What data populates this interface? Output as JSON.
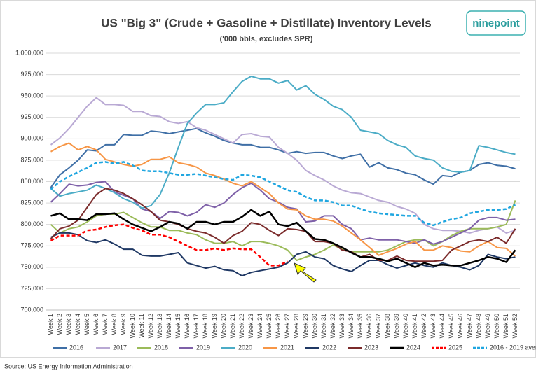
{
  "chart_data": {
    "type": "line",
    "title": "US \"Big 3\"  (Crude + Gasoline + Distillate) Inventory Levels",
    "subtitle": "('000 bbls, excludes SPR)",
    "logo": "ninepoint",
    "source": "Source: US Energy Information Administration",
    "grid": true,
    "legend": "bottom",
    "ylim": [
      700000,
      1000000
    ],
    "yticks": [
      {
        "value": 700000,
        "label": "700,000"
      },
      {
        "value": 725000,
        "label": "725,000"
      },
      {
        "value": 750000,
        "label": "750,000"
      },
      {
        "value": 775000,
        "label": "775,000"
      },
      {
        "value": 800000,
        "label": "800,000"
      },
      {
        "value": 825000,
        "label": "825,000"
      },
      {
        "value": 850000,
        "label": "850,000"
      },
      {
        "value": 875000,
        "label": "875,000"
      },
      {
        "value": 900000,
        "label": "900,000"
      },
      {
        "value": 925000,
        "label": "925,000"
      },
      {
        "value": 950000,
        "label": "950,000"
      },
      {
        "value": 975000,
        "label": "975,000"
      },
      {
        "value": 1000000,
        "label": "1,000,000"
      }
    ],
    "categories": [
      "Week 1",
      "Week 2",
      "Week 3",
      "Week 4",
      "Week 5",
      "Week 6",
      "Week 7",
      "Week 8",
      "Week 9",
      "Week 10",
      "Week 11",
      "Week 12",
      "Week 13",
      "Week 14",
      "Week 15",
      "Week 16",
      "Week 17",
      "Week 18",
      "Week 19",
      "Week 20",
      "Week 21",
      "Week 22",
      "Week 23",
      "Week 24",
      "Week 25",
      "Week 26",
      "Week 27",
      "Week 28",
      "Week 29",
      "Week 30",
      "Week 31",
      "Week 32",
      "Week 33",
      "Week 34",
      "Week 35",
      "Week 36",
      "Week 37",
      "Week 38",
      "Week 39",
      "Week 40",
      "Week 41",
      "Week 42",
      "Week 43",
      "Week 44",
      "Week 45",
      "Week 46",
      "Week 47",
      "Week 48",
      "Week 49",
      "Week 50",
      "Week 51",
      "Week 52"
    ],
    "series": [
      {
        "name": "2016",
        "color": "#3f6fa6",
        "width": 2,
        "dash": false,
        "values": [
          843000,
          858000,
          866000,
          875000,
          887000,
          886000,
          893000,
          893000,
          905000,
          904000,
          904000,
          909000,
          908000,
          906000,
          908000,
          910000,
          912000,
          907000,
          903000,
          898000,
          895000,
          893000,
          893000,
          890000,
          890000,
          887000,
          883000,
          885000,
          883000,
          884000,
          884000,
          880000,
          877000,
          880000,
          882000,
          867000,
          872000,
          866000,
          864000,
          860000,
          858000,
          852000,
          847000,
          857000,
          856000,
          861000,
          863000,
          870000,
          872000,
          869000,
          868000,
          865000
        ]
      },
      {
        "name": "2017",
        "color": "#b9a9d4",
        "width": 2,
        "dash": false,
        "values": [
          893000,
          901000,
          912000,
          925000,
          938000,
          948000,
          940000,
          940000,
          939000,
          932000,
          932000,
          927000,
          926000,
          920000,
          918000,
          920000,
          913000,
          910000,
          905000,
          900000,
          895000,
          905000,
          906000,
          903000,
          902000,
          890000,
          883000,
          875000,
          863000,
          857000,
          852000,
          845000,
          840000,
          837000,
          836000,
          832000,
          828000,
          826000,
          821000,
          818000,
          813000,
          800000,
          795000,
          793000,
          793000,
          792000,
          790000,
          793000,
          795000,
          797000,
          790000,
          793000
        ]
      },
      {
        "name": "2018",
        "color": "#9bbb59",
        "width": 2,
        "dash": false,
        "values": [
          800000,
          790000,
          795000,
          797000,
          803000,
          810000,
          812000,
          812000,
          814000,
          808000,
          802000,
          797000,
          797000,
          793000,
          793000,
          790000,
          788000,
          782000,
          778000,
          778000,
          780000,
          775000,
          780000,
          780000,
          778000,
          775000,
          770000,
          758000,
          762000,
          765000,
          770000,
          776000,
          771000,
          768000,
          768000,
          768000,
          768000,
          770000,
          775000,
          780000,
          782000,
          782000,
          775000,
          780000,
          787000,
          792000,
          795000,
          795000,
          795000,
          797000,
          800000,
          828000
        ]
      },
      {
        "name": "2019",
        "color": "#7e60a8",
        "width": 2,
        "dash": false,
        "values": [
          826000,
          836000,
          847000,
          845000,
          846000,
          849000,
          850000,
          838000,
          834000,
          830000,
          818000,
          815000,
          807000,
          815000,
          814000,
          810000,
          814000,
          823000,
          820000,
          825000,
          835000,
          843000,
          848000,
          840000,
          830000,
          826000,
          820000,
          818000,
          803000,
          804000,
          810000,
          810000,
          800000,
          795000,
          782000,
          784000,
          782000,
          782000,
          782000,
          780000,
          778000,
          782000,
          777000,
          780000,
          785000,
          790000,
          795000,
          805000,
          808000,
          808000,
          805000,
          806000
        ]
      },
      {
        "name": "2020",
        "color": "#4bacc6",
        "width": 2,
        "dash": false,
        "values": [
          842000,
          833000,
          836000,
          838000,
          840000,
          846000,
          842000,
          837000,
          830000,
          826000,
          819000,
          822000,
          835000,
          860000,
          890000,
          918000,
          930000,
          940000,
          940000,
          942000,
          955000,
          967000,
          973000,
          970000,
          970000,
          965000,
          968000,
          957000,
          962000,
          952000,
          946000,
          938000,
          934000,
          925000,
          910000,
          908000,
          906000,
          898000,
          893000,
          890000,
          880000,
          877000,
          875000,
          866000,
          862000,
          861000,
          863000,
          892000,
          890000,
          887000,
          884000,
          882000
        ]
      },
      {
        "name": "2021",
        "color": "#f79646",
        "width": 2,
        "dash": false,
        "values": [
          885000,
          891000,
          895000,
          887000,
          891000,
          887000,
          876000,
          873000,
          870000,
          868000,
          870000,
          876000,
          876000,
          879000,
          872000,
          870000,
          867000,
          860000,
          857000,
          853000,
          848000,
          845000,
          850000,
          843000,
          836000,
          825000,
          818000,
          817000,
          810000,
          806000,
          806000,
          804000,
          798000,
          790000,
          782000,
          773000,
          764000,
          768000,
          772000,
          777000,
          780000,
          770000,
          770000,
          775000,
          773000,
          769000,
          768000,
          775000,
          780000,
          773000,
          772000,
          763000
        ]
      },
      {
        "name": "2022",
        "color": "#1f3864",
        "width": 2,
        "dash": false,
        "values": [
          785000,
          790000,
          790000,
          788000,
          781000,
          779000,
          782000,
          777000,
          771000,
          771000,
          764000,
          763000,
          763000,
          765000,
          767000,
          755000,
          752000,
          749000,
          751000,
          747000,
          746000,
          740000,
          744000,
          746000,
          748000,
          750000,
          755000,
          765000,
          768000,
          762000,
          760000,
          752000,
          748000,
          745000,
          752000,
          758000,
          758000,
          753000,
          749000,
          752000,
          755000,
          752000,
          750000,
          755000,
          752000,
          750000,
          747000,
          752000,
          765000,
          762000,
          760000,
          762000
        ]
      },
      {
        "name": "2023",
        "color": "#7b2b2b",
        "width": 2,
        "dash": false,
        "values": [
          783000,
          795000,
          798000,
          805000,
          820000,
          835000,
          842000,
          840000,
          836000,
          830000,
          823000,
          815000,
          805000,
          803000,
          800000,
          795000,
          792000,
          790000,
          785000,
          778000,
          787000,
          792000,
          802000,
          800000,
          793000,
          787000,
          795000,
          794000,
          792000,
          780000,
          780000,
          778000,
          770000,
          768000,
          762000,
          765000,
          758000,
          758000,
          763000,
          758000,
          757000,
          757000,
          757000,
          758000,
          770000,
          775000,
          780000,
          782000,
          780000,
          785000,
          778000,
          795000
        ]
      },
      {
        "name": "2024",
        "color": "#000000",
        "width": 2.5,
        "dash": false,
        "values": [
          810000,
          813000,
          806000,
          806000,
          805000,
          812000,
          812000,
          813000,
          806000,
          800000,
          796000,
          792000,
          797000,
          803000,
          801000,
          795000,
          803000,
          803000,
          800000,
          803000,
          803000,
          809000,
          817000,
          810000,
          815000,
          800000,
          798000,
          802000,
          792000,
          783000,
          782000,
          778000,
          773000,
          767000,
          762000,
          762000,
          760000,
          757000,
          760000,
          755000,
          750000,
          755000,
          752000,
          753000,
          752000,
          752000,
          755000,
          758000,
          762000,
          760000,
          756000,
          770000
        ]
      },
      {
        "name": "2025",
        "color": "#ff0000",
        "width": 2.5,
        "dash": true,
        "values": [
          781000,
          787000,
          787000,
          787000,
          793000,
          794000,
          797000,
          799000,
          800000,
          796000,
          793000,
          788000,
          788000,
          785000,
          780000,
          775000,
          770000,
          770000,
          772000,
          770000,
          772000,
          771000,
          771000,
          762000,
          752000,
          752000,
          757000,
          null,
          null,
          null,
          null,
          null,
          null,
          null,
          null,
          null,
          null,
          null,
          null,
          null,
          null,
          null,
          null,
          null,
          null,
          null,
          null,
          null,
          null,
          null,
          null,
          null
        ]
      },
      {
        "name": "2016 - 2019 average",
        "color": "#1fa6e0",
        "width": 2.5,
        "dash": true,
        "values": [
          841000,
          850000,
          856000,
          861000,
          866000,
          872000,
          873000,
          871000,
          873000,
          869000,
          863000,
          862000,
          862000,
          860000,
          858000,
          858000,
          859000,
          857000,
          855000,
          853000,
          852000,
          858000,
          857000,
          855000,
          850000,
          845000,
          840000,
          838000,
          832000,
          828000,
          828000,
          826000,
          822000,
          822000,
          818000,
          815000,
          813000,
          812000,
          811000,
          810000,
          810000,
          802000,
          799000,
          803000,
          806000,
          808000,
          813000,
          815000,
          817000,
          817000,
          818000,
          823000
        ]
      }
    ]
  }
}
